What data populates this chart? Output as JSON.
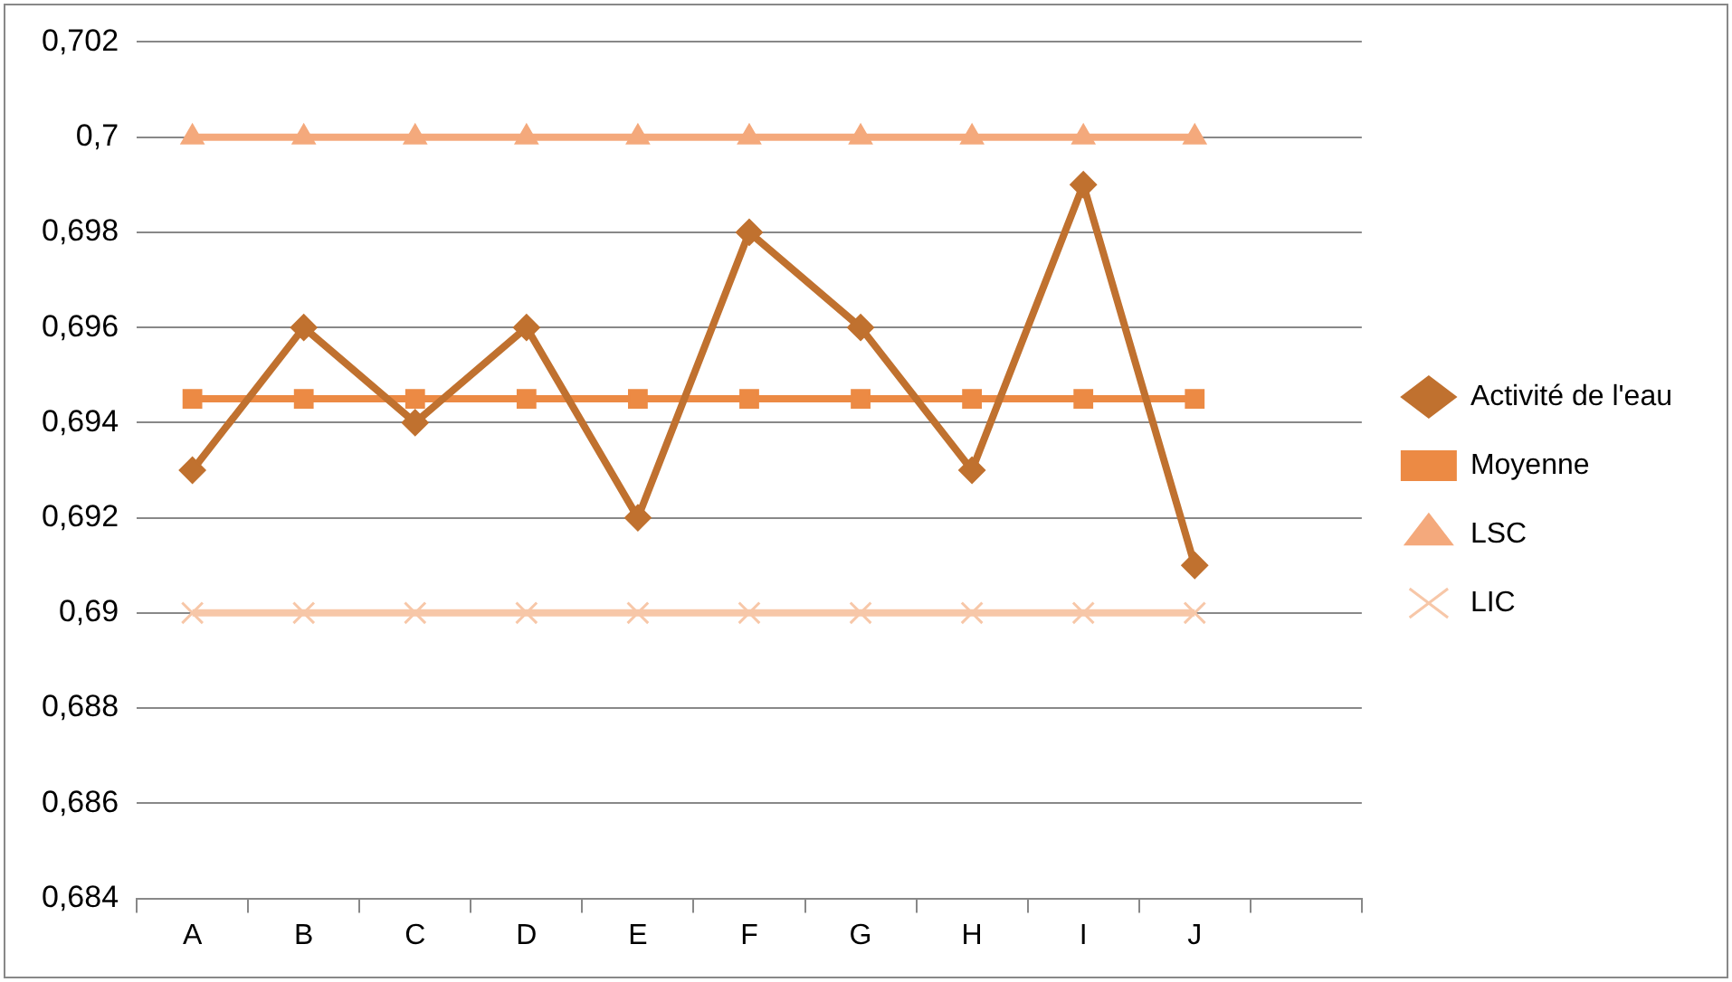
{
  "chart_data": {
    "type": "line",
    "categories": [
      "A",
      "B",
      "C",
      "D",
      "E",
      "F",
      "G",
      "H",
      "I",
      "J",
      null
    ],
    "series": [
      {
        "name": "Activité de l'eau",
        "color": "#c0712f",
        "marker": "diamond",
        "values": [
          0.693,
          0.696,
          0.694,
          0.696,
          0.692,
          0.698,
          0.696,
          0.693,
          0.699,
          0.691,
          null
        ]
      },
      {
        "name": "Moyenne",
        "color": "#ec8a44",
        "marker": "square",
        "values": [
          0.6945,
          0.6945,
          0.6945,
          0.6945,
          0.6945,
          0.6945,
          0.6945,
          0.6945,
          0.6945,
          0.6945,
          null
        ]
      },
      {
        "name": "LSC",
        "color": "#f4a97c",
        "marker": "triangle",
        "values": [
          0.7,
          0.7,
          0.7,
          0.7,
          0.7,
          0.7,
          0.7,
          0.7,
          0.7,
          0.7,
          null
        ]
      },
      {
        "name": "LIC",
        "color": "#f7c7a8",
        "marker": "cross",
        "values": [
          0.69,
          0.69,
          0.69,
          0.69,
          0.69,
          0.69,
          0.69,
          0.69,
          0.69,
          0.69,
          null
        ]
      }
    ],
    "ylim": [
      0.684,
      0.702
    ],
    "yticks": [
      {
        "value": 0.684,
        "label": "0,684"
      },
      {
        "value": 0.686,
        "label": "0,686"
      },
      {
        "value": 0.688,
        "label": "0,688"
      },
      {
        "value": 0.69,
        "label": "0,69"
      },
      {
        "value": 0.692,
        "label": "0,692"
      },
      {
        "value": 0.694,
        "label": "0,694"
      },
      {
        "value": 0.696,
        "label": "0,696"
      },
      {
        "value": 0.698,
        "label": "0,698"
      },
      {
        "value": 0.7,
        "label": "0,7"
      },
      {
        "value": 0.702,
        "label": "0,702"
      }
    ],
    "grid": "y",
    "legend": "right",
    "line_style": "solid"
  }
}
